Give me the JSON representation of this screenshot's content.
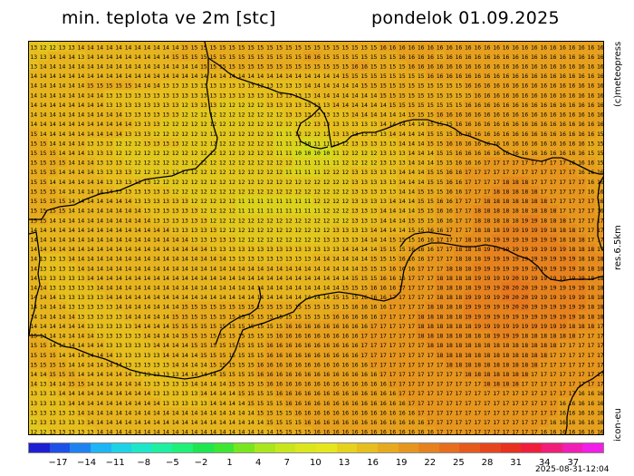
{
  "header": {
    "title": "min. teplota ve 2m [stc]",
    "date": "pondelok 01.09.2025"
  },
  "side_labels": {
    "copyright": "(c)meteopress",
    "resolution": "res.6.5km",
    "model": "icon-eu"
  },
  "footer": {
    "timestamp": "2025-08-31-12:04"
  },
  "map": {
    "rows": [
      "13 12 12 13 13 14 14 14 14 14 14 14 14 14 14 14 15 15 15 15 15 15 15 15 15 15 15 15 15 15 15 15 15 15 15 15 15 16 16 16 16 16 16 16 16 16 16 16 16 16 16 16 16 16 16 16 16 16 16 16 16",
      "13 13 14 14 14 13 14 14 14 14 14 14 14 14 14 15 15 15 15 15 15 15 15 15 15 15 15 15 15 16 16 15 15 15 15 15 15 15 15 16 16 16 16 15 16 16 16 16 16 16 16 16 16 16 16 16 16 16 16 16 16",
      "13 14 14 14 14 14 14 14 14 14 14 14 14 14 14 14 14 14 15 15 15 15 15 15 15 15 15 15 15 15 15 15 15 15 16 16 15 15 15 15 16 16 16 16 16 16 16 16 16 16 16 16 16 16 16 16 16 16 16 16 16",
      "14 14 14 14 14 14 14 14 14 14 14 14 14 14 14 14 14 14 14 14 14 14 14 14 14 14 14 14 14 14 14 14 14 15 15 15 15 15 15 15 15 15 16 16 16 16 16 16 16 16 16 16 16 16 16 16 16 16 16 16 16",
      "14 14 14 14 14 14 15 15 15 15 15 14 14 14 13 13 13 13 13 13 13 13 13 13 13 13 13 13 13 14 14 14 14 14 14 15 15 15 15 15 15 15 15 15 15 15 16 16 16 16 16 16 16 16 16 16 16 16 16 16 16",
      "14 14 14 14 14 14 14 14 13 13 13 13 13 13 13 13 13 13 13 13 13 13 13 13 13 13 13 13 13 13 14 14 14 14 14 14 14 15 15 15 15 15 15 15 15 15 15 16 16 16 16 16 16 16 16 16 16 16 16 16 16",
      "14 14 14 14 14 14 14 14 13 13 13 13 13 13 13 13 12 13 13 13 12 12 12 12 12 13 13 13 13 13 13 13 14 14 14 14 14 14 15 15 15 15 15 15 15 15 16 16 16 16 16 16 16 16 16 16 16 16 16 16 16",
      "14 14 14 14 14 14 14 14 14 14 13 13 13 13 13 13 12 12 12 12 12 12 12 12 12 12 12 13 13 13 13 13 13 13 14 14 14 14 14 14 15 15 15 16 16 16 16 16 16 16 16 16 16 16 16 16 16 16 16 16 16",
      "14 14 14 14 14 14 14 14 14 14 14 13 13 13 12 12 12 12 12 12 12 12 12 12 12 12 12 12 12 12 13 13 13 13 13 13 13 14 14 14 14 14 15 15 15 16 16 16 16 16 16 16 16 16 16 16 16 16 16 16 16",
      "15 14 14 14 14 14 14 14 14 14 13 13 13 12 12 12 12 12 12 12 12 12 12 12 12 12 11 11 12 12 12 12 13 13 13 13 13 13 14 14 14 14 15 15 15 16 16 16 16 16 16 16 16 16 16 16 16 16 16 16 15",
      "15 15 14 14 14 14 13 13 13 12 12 12 13 13 13 13 12 12 12 12 12 12 12 12 12 12 11 11 11 10 11 11 12 12 13 13 13 13 13 14 14 14 15 15 16 16 16 16 16 16 16 16 16 16 16 16 16 16 16 15 15",
      "15 15 15 14 14 14 13 13 13 12 12 12 12 12 12 12 12 12 12 12 12 12 12 12 12 12 11 11 10 10 10 10 11 12 12 12 12 13 13 13 14 14 14 15 15 16 16 16 16 16 16 16 16 16 16 16 16 16 16 15 15",
      "15 15 15 15 14 14 14 13 13 13 12 12 12 12 12 12 12 12 12 12 12 12 12 12 12 12 12 12 11 11 11 11 11 12 12 12 12 13 13 13 14 14 14 15 15 16 16 16 17 17 17 17 17 17 17 17 17 16 16 16 15",
      "15 15 15 14 14 14 14 13 13 13 13 12 12 12 12 12 12 12 12 12 12 12 12 12 12 12 12 11 11 11 11 12 12 12 13 13 13 13 13 14 14 14 15 15 16 16 17 17 17 17 17 17 17 17 17 17 17 17 16 16 16",
      "15 15 14 14 14 14 14 14 13 13 13 13 13 12 12 12 12 12 12 12 12 12 12 12 12 12 12 12 12 12 12 12 12 12 13 13 13 13 13 14 14 14 15 15 16 16 17 17 17 17 18 18 18 17 17 17 17 17 17 16 16",
      "15 15 15 14 14 14 14 14 14 13 13 13 13 13 13 12 12 12 12 12 12 12 12 12 12 12 12 12 12 12 12 12 12 12 13 13 13 13 13 14 14 15 15 15 16 16 17 17 17 18 18 18 18 18 17 17 17 17 17 16 16",
      "15 15 15 15 14 14 14 14 14 14 14 13 13 13 13 13 13 12 12 12 12 12 11 11 11 11 11 11 11 11 12 12 12 12 13 13 13 13 14 14 14 15 15 16 16 17 17 17 18 18 18 18 18 18 18 17 17 17 17 17 16",
      "15 15 15 15 14 14 14 14 14 14 14 14 13 13 13 13 13 13 12 12 12 12 11 11 11 11 11 11 11 11 11 12 12 12 13 13 13 14 14 14 14 15 15 16 16 17 17 18 18 18 18 18 18 18 18 18 17 17 17 17 16",
      "15 15 14 14 14 14 14 14 14 14 14 14 14 13 13 13 13 13 13 12 12 12 12 12 12 12 12 12 12 12 12 12 12 12 13 13 13 14 14 14 15 15 15 16 16 17 17 18 18 18 18 18 19 19 18 18 18 17 17 17 17",
      "14 14 14 14 14 14 14 14 14 14 14 14 14 14 14 13 13 13 13 13 12 12 12 12 12 12 12 12 12 12 12 12 13 13 13 13 14 14 14 14 15 15 16 16 17 17 17 18 18 18 19 19 19 19 19 18 18 18 17 17 17",
      "14 14 14 14 14 14 14 14 14 14 14 14 14 14 14 14 14 13 13 13 13 13 12 12 12 12 12 12 12 12 12 13 13 13 13 14 14 14 15 15 15 16 16 17 17 17 18 18 18 19 19 19 19 19 19 19 18 18 18 17 17",
      "14 14 14 14 14 14 14 14 14 14 14 14 14 14 14 14 14 14 14 13 13 13 13 13 13 13 13 13 13 13 13 13 13 14 14 14 14 15 15 15 16 16 16 17 17 18 18 18 19 19 19 19 19 19 19 19 19 18 18 18 17",
      "14 13 13 13 14 14 14 14 14 14 14 14 14 14 14 14 14 14 14 14 14 13 13 13 13 13 13 13 13 13 14 14 14 14 14 14 15 15 15 16 16 16 17 17 17 18 18 18 19 19 19 19 19 19 19 19 19 19 18 18 18",
      "14 13 13 13 13 14 14 14 14 14 14 14 14 14 14 14 14 14 14 14 14 14 14 14 14 14 14 14 14 14 14 14 14 14 14 15 15 15 16 16 16 17 17 17 18 18 18 19 19 19 19 19 19 19 19 19 19 19 18 18 18",
      "14 13 13 13 13 13 14 14 14 14 14 14 14 14 14 14 14 14 14 14 14 14 14 14 14 14 14 14 14 14 14 14 14 14 15 15 15 16 16 16 17 17 17 18 18 18 18 19 19 19 19 20 19 19 19 19 19 19 19 18 18",
      "14 14 13 13 13 13 13 14 14 14 14 14 14 14 14 14 14 14 14 14 14 14 14 14 14 14 14 14 14 14 14 14 14 15 15 15 16 16 16 17 17 17 17 18 18 18 18 19 19 19 20 20 20 19 19 19 19 19 19 18 18",
      "14 14 14 13 13 13 13 13 14 14 14 14 14 14 14 14 14 14 14 14 14 14 14 14 14 14 14 14 14 14 14 14 15 15 15 16 16 16 17 17 17 17 17 18 18 18 19 19 19 19 20 20 20 19 19 19 19 19 19 18 18",
      "14 14 14 14 13 13 13 13 13 14 14 14 14 14 14 14 15 15 15 15 15 15 15 15 15 15 15 15 15 15 15 15 15 15 16 16 16 16 17 17 17 17 18 18 18 18 19 19 19 19 19 20 20 19 19 19 19 19 19 18 18",
      "14 14 14 14 14 13 13 13 13 13 14 14 14 14 14 15 15 15 15 15 15 15 15 15 15 15 15 15 15 15 15 15 16 16 16 16 16 17 17 17 17 18 18 18 18 18 19 19 19 19 19 19 19 19 19 19 19 19 18 18 18",
      "14 14 14 14 14 14 13 13 13 13 13 14 14 14 14 15 15 15 15 15 15 15 15 15 15 15 15 16 16 16 16 16 16 16 16 16 17 17 17 17 17 18 18 18 18 18 18 19 19 19 19 19 19 19 19 19 19 18 18 18 17",
      "15 14 14 14 14 14 14 13 13 13 13 13 14 14 14 14 15 15 15 15 15 15 15 15 15 15 16 16 16 16 16 16 16 16 16 17 17 17 17 17 17 18 18 18 18 18 18 18 18 19 19 19 18 18 18 18 18 18 17 17 17",
      "15 15 14 14 14 14 14 14 13 13 13 13 13 14 14 14 14 15 15 15 15 15 15 15 15 16 16 16 16 16 16 16 16 16 16 17 17 17 17 17 17 17 18 18 18 18 18 18 18 18 18 18 18 18 18 18 17 17 17 17 17",
      "15 15 15 14 14 14 14 14 14 13 13 13 13 13 14 14 14 14 15 15 15 15 15 15 15 16 16 16 16 16 16 16 16 16 16 17 17 17 17 17 17 17 17 18 18 18 18 18 18 18 18 18 18 18 18 17 17 17 17 17 17",
      "15 15 15 15 14 14 14 14 14 14 13 13 13 13 13 14 14 14 14 15 15 15 15 15 16 16 16 16 16 16 16 16 16 16 16 16 17 17 17 17 17 17 17 17 18 18 18 18 18 18 18 18 18 18 17 17 17 17 17 17 17",
      "14 14 15 15 15 14 14 14 14 14 14 13 13 13 13 13 14 14 14 14 15 15 15 15 16 16 16 16 16 16 16 16 16 16 16 16 16 17 17 17 17 17 17 17 17 17 18 18 18 18 18 18 18 17 17 17 17 17 17 17 17",
      "14 13 14 14 15 15 14 14 14 14 14 14 13 13 13 13 13 14 14 14 14 15 15 15 15 16 16 16 16 16 16 16 16 16 16 16 16 16 17 17 17 17 17 17 17 17 17 17 18 18 18 18 17 17 17 17 17 17 17 17 17",
      "13 13 13 14 14 14 14 14 14 14 14 14 14 13 13 13 13 13 14 14 14 14 15 15 15 15 16 16 16 16 16 16 16 16 16 16 16 16 16 17 17 17 17 17 17 17 17 17 17 17 17 17 17 17 17 17 17 17 16 16 16",
      "13 13 13 13 14 14 14 14 14 14 14 14 14 14 13 13 13 13 13 14 14 14 14 15 15 15 15 16 16 16 16 16 16 16 16 16 16 16 16 16 17 17 17 17 17 17 17 17 17 17 17 17 17 17 17 17 16 16 16 16 16",
      "13 13 13 13 13 14 14 14 14 14 14 14 14 14 14 14 14 14 14 14 14 14 14 14 15 15 15 15 16 16 16 16 16 16 16 16 16 16 16 16 16 17 17 17 17 17 17 17 17 17 17 17 17 17 17 17 16 16 16 16 16",
      "12 13 13 13 13 13 14 14 14 14 14 14 14 14 14 14 14 14 14 14 14 14 14 14 14 15 15 15 15 16 16 16 16 16 16 16 16 16 16 16 16 16 17 17 17 17 17 17 17 17 17 17 17 17 17 16 16 16 16 16 16",
      "12 12 13 13 13 13 13 14 14 14 14 14 14 14 14 14 14 14 14 14 14 14 14 14 14 14 15 15 15 15 16 16 16 16 16 16 16 16 16 16 16 16 16 17 17 17 17 17 17 17 17 17 17 17 16 16 16 16 16 16 16"
    ]
  },
  "colorbar": {
    "colors": [
      "#1e1ed2",
      "#1e50e6",
      "#1e82f0",
      "#1eb4f5",
      "#1ed2e6",
      "#1ee6c8",
      "#1ef0a0",
      "#1ef078",
      "#1ee650",
      "#3ce632",
      "#78e61e",
      "#aae61e",
      "#c8e61e",
      "#dce61e",
      "#e6e61e",
      "#e6d21e",
      "#e6be1e",
      "#e6aa1e",
      "#e6961e",
      "#e6821e",
      "#e66e1e",
      "#e65a1e",
      "#e6461e",
      "#e6321e",
      "#f01e3c",
      "#f01e78",
      "#f01eb4",
      "#f01ee6"
    ],
    "ticks": [
      "−17",
      "−14",
      "−11",
      "−8",
      "−5",
      "−2",
      "1",
      "4",
      "7",
      "10",
      "13",
      "16",
      "19",
      "22",
      "25",
      "28",
      "31",
      "34",
      "37"
    ]
  }
}
